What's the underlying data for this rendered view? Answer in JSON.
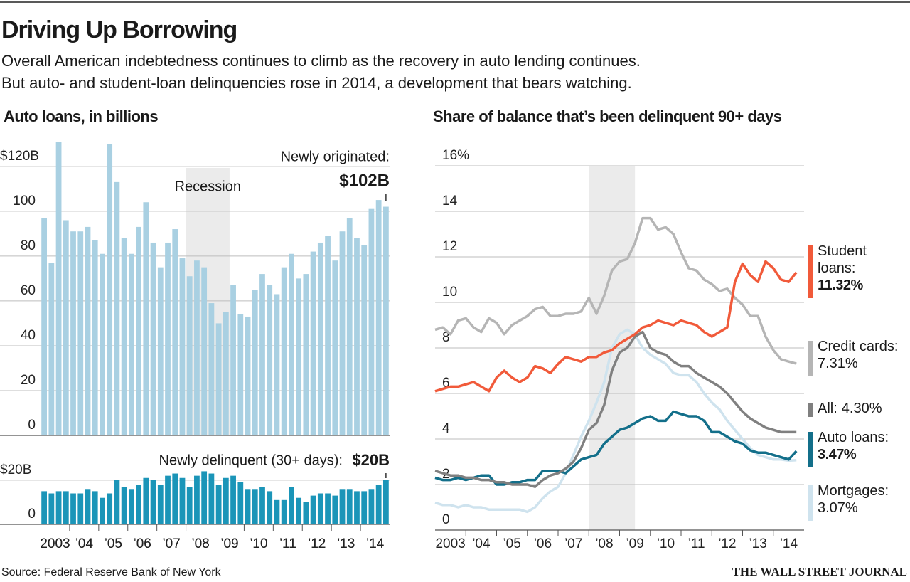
{
  "header": {
    "title": "Driving Up Borrowing",
    "subtitle": [
      "Overall American indebtedness continues to climb as the recovery in auto lending continues.",
      "But auto- and student-loan delinquencies rose in 2014, a development that bears watching."
    ]
  },
  "chart_data": [
    {
      "type": "bar",
      "title": "Auto loans, in billions",
      "annotation": "Newly originated:",
      "color": "#a9d0e2",
      "shade": {
        "label": "Recession",
        "from": 2008,
        "to": 2009.5
      },
      "xlim": [
        2003,
        2015
      ],
      "categories": [
        "2003",
        null,
        null,
        null,
        "’04",
        null,
        null,
        null,
        "’05",
        null,
        null,
        null,
        "’06",
        null,
        null,
        null,
        "’07",
        null,
        null,
        null,
        "’08",
        null,
        null,
        null,
        "’09",
        null,
        null,
        null,
        "’10",
        null,
        null,
        null,
        "’11",
        null,
        null,
        null,
        "’12",
        null,
        null,
        null,
        "’13",
        null,
        null,
        null,
        "’14",
        null,
        null,
        null
      ],
      "values": [
        97,
        77,
        131,
        96,
        91,
        91,
        93,
        87,
        81,
        130,
        113,
        88,
        81,
        93,
        104,
        86,
        75,
        86,
        92,
        79,
        71,
        78,
        75,
        59,
        50,
        55,
        67,
        54,
        53,
        65,
        72,
        67,
        63,
        75,
        81,
        70,
        72,
        82,
        86,
        89,
        78,
        91,
        97,
        88,
        85,
        101,
        105,
        102
      ],
      "value_labels": [
        null,
        null,
        null,
        null,
        null,
        null,
        null,
        null,
        null,
        null,
        null,
        null,
        null,
        null,
        null,
        null,
        null,
        null,
        null,
        null,
        null,
        null,
        null,
        null,
        null,
        null,
        null,
        null,
        null,
        null,
        null,
        null,
        null,
        null,
        null,
        null,
        null,
        null,
        null,
        null,
        null,
        null,
        null,
        null,
        null,
        null,
        null,
        "$102B"
      ],
      "ylim": [
        0,
        132
      ],
      "yticks": [
        0,
        20,
        40,
        60,
        80,
        100,
        {
          "value": 120,
          "label": "$120B"
        }
      ],
      "grid": true
    },
    {
      "type": "bar",
      "annotation": "Newly delinquent (30+ days):",
      "color": "#1b95b8",
      "xlim": [
        2003,
        2015
      ],
      "categories": [
        "2003",
        null,
        null,
        null,
        "’04",
        null,
        null,
        null,
        "’05",
        null,
        null,
        null,
        "’06",
        null,
        null,
        null,
        "’07",
        null,
        null,
        null,
        "’08",
        null,
        null,
        null,
        "’09",
        null,
        null,
        null,
        "’10",
        null,
        null,
        null,
        "’11",
        null,
        null,
        null,
        "’12",
        null,
        null,
        null,
        "’13",
        null,
        null,
        null,
        "’14",
        null,
        null,
        null
      ],
      "values": [
        15,
        14,
        15,
        15,
        14,
        14,
        16,
        15,
        12,
        14,
        20,
        17,
        16,
        18,
        21,
        20,
        18,
        22,
        23,
        21,
        17,
        22,
        24,
        23,
        18,
        21,
        22,
        19,
        16,
        16,
        17,
        15,
        11,
        11,
        17,
        12,
        10,
        13,
        14,
        14,
        13,
        16,
        16,
        15,
        15,
        16,
        18,
        20
      ],
      "value_labels": [
        null,
        null,
        null,
        null,
        null,
        null,
        null,
        null,
        null,
        null,
        null,
        null,
        null,
        null,
        null,
        null,
        null,
        null,
        null,
        null,
        null,
        null,
        null,
        null,
        null,
        null,
        null,
        null,
        null,
        null,
        null,
        null,
        null,
        null,
        null,
        null,
        null,
        null,
        null,
        null,
        null,
        null,
        null,
        null,
        null,
        null,
        null,
        "$20B"
      ],
      "ylim": [
        0,
        28
      ],
      "yticks": [
        0,
        {
          "value": 20,
          "label": "$20B"
        }
      ],
      "grid": true
    },
    {
      "type": "line",
      "title": "Share of balance that’s been delinquent 90+ days",
      "shade": {
        "from": 2008,
        "to": 2009.5
      },
      "x": [
        2003,
        2003.25,
        2003.5,
        2003.75,
        2004,
        2004.25,
        2004.5,
        2004.75,
        2005,
        2005.25,
        2005.5,
        2005.75,
        2006,
        2006.25,
        2006.5,
        2006.75,
        2007,
        2007.25,
        2007.5,
        2007.75,
        2008,
        2008.25,
        2008.5,
        2008.75,
        2009,
        2009.25,
        2009.5,
        2009.75,
        2010,
        2010.25,
        2010.5,
        2010.75,
        2011,
        2011.25,
        2011.5,
        2011.75,
        2012,
        2012.25,
        2012.5,
        2012.75,
        2013,
        2013.25,
        2013.5,
        2013.75,
        2014,
        2014.25,
        2014.5,
        2014.75
      ],
      "xlim": [
        2003,
        2015
      ],
      "xticks": [
        {
          "value": 2003.5,
          "label": "2003"
        },
        {
          "value": 2004.5,
          "label": "’04"
        },
        {
          "value": 2005.5,
          "label": "’05"
        },
        {
          "value": 2006.5,
          "label": "’06"
        },
        {
          "value": 2007.5,
          "label": "’07"
        },
        {
          "value": 2008.5,
          "label": "’08"
        },
        {
          "value": 2009.5,
          "label": "’09"
        },
        {
          "value": 2010.5,
          "label": "’10"
        },
        {
          "value": 2011.5,
          "label": "’11"
        },
        {
          "value": 2012.5,
          "label": "’12"
        },
        {
          "value": 2013.5,
          "label": "’13"
        },
        {
          "value": 2014.5,
          "label": "’14"
        }
      ],
      "ylim": [
        0,
        16
      ],
      "yticks": [
        0,
        2,
        4,
        6,
        8,
        10,
        12,
        14,
        {
          "value": 16,
          "label": "16%"
        }
      ],
      "grid": true,
      "series": [
        {
          "name": "Student loans:",
          "color": "#f15a3a",
          "values": [
            6.1,
            6.2,
            6.3,
            6.3,
            6.4,
            6.5,
            6.3,
            6.1,
            6.7,
            7.0,
            6.7,
            6.5,
            6.7,
            7.2,
            7.1,
            6.9,
            7.3,
            7.6,
            7.5,
            7.4,
            7.6,
            7.6,
            7.8,
            7.9,
            8.2,
            8.4,
            8.6,
            8.9,
            9.0,
            9.2,
            9.1,
            9.0,
            9.2,
            9.1,
            9.0,
            8.7,
            8.5,
            8.7,
            8.9,
            10.9,
            11.7,
            11.2,
            10.9,
            11.8,
            11.5,
            11.0,
            10.9,
            11.32
          ],
          "value_labels": [
            null,
            null,
            null,
            null,
            null,
            null,
            null,
            null,
            null,
            null,
            null,
            null,
            null,
            null,
            null,
            null,
            null,
            null,
            null,
            null,
            null,
            null,
            null,
            null,
            null,
            null,
            null,
            null,
            null,
            null,
            null,
            null,
            null,
            null,
            null,
            null,
            null,
            null,
            null,
            null,
            null,
            null,
            null,
            null,
            null,
            null,
            null,
            "11.32%"
          ]
        },
        {
          "name": "Credit cards:",
          "color": "#b5b5b5",
          "values": [
            8.8,
            8.9,
            8.6,
            9.2,
            9.3,
            8.9,
            8.7,
            9.3,
            9.1,
            8.6,
            9.0,
            9.2,
            9.4,
            9.7,
            9.8,
            9.4,
            9.4,
            9.5,
            9.5,
            9.6,
            10.2,
            9.5,
            10.3,
            11.4,
            11.8,
            11.9,
            12.6,
            13.7,
            13.7,
            13.2,
            13.3,
            13.0,
            12.2,
            11.5,
            11.4,
            11.0,
            10.8,
            10.5,
            10.6,
            10.2,
            9.9,
            9.4,
            9.4,
            8.5,
            7.9,
            7.5,
            7.4,
            7.31
          ],
          "value_labels": [
            null,
            null,
            null,
            null,
            null,
            null,
            null,
            null,
            null,
            null,
            null,
            null,
            null,
            null,
            null,
            null,
            null,
            null,
            null,
            null,
            null,
            null,
            null,
            null,
            null,
            null,
            null,
            null,
            null,
            null,
            null,
            null,
            null,
            null,
            null,
            null,
            null,
            null,
            null,
            null,
            null,
            null,
            null,
            null,
            null,
            null,
            null,
            "7.31%"
          ]
        },
        {
          "name": "All:",
          "color": "#808080",
          "values": [
            2.6,
            2.5,
            2.4,
            2.4,
            2.3,
            2.3,
            2.2,
            2.2,
            2.1,
            2.1,
            2.0,
            2.0,
            2.0,
            1.9,
            2.2,
            2.4,
            2.5,
            2.7,
            3.0,
            3.6,
            4.4,
            4.7,
            5.5,
            7.0,
            7.8,
            8.0,
            8.5,
            8.7,
            8.0,
            7.8,
            7.7,
            7.4,
            7.2,
            7.2,
            6.9,
            6.7,
            6.5,
            6.3,
            6.0,
            5.6,
            5.2,
            4.9,
            4.7,
            4.5,
            4.4,
            4.3,
            4.3,
            4.3
          ],
          "value_labels": [
            null,
            null,
            null,
            null,
            null,
            null,
            null,
            null,
            null,
            null,
            null,
            null,
            null,
            null,
            null,
            null,
            null,
            null,
            null,
            null,
            null,
            null,
            null,
            null,
            null,
            null,
            null,
            null,
            null,
            null,
            null,
            null,
            null,
            null,
            null,
            null,
            null,
            null,
            null,
            null,
            null,
            null,
            null,
            null,
            null,
            null,
            null,
            "4.30%"
          ]
        },
        {
          "name": "Auto loans:",
          "color": "#136f8a",
          "values": [
            2.3,
            2.2,
            2.2,
            2.3,
            2.2,
            2.3,
            2.4,
            2.4,
            2.0,
            2.0,
            2.1,
            2.1,
            2.2,
            2.2,
            2.6,
            2.6,
            2.6,
            2.5,
            2.8,
            3.1,
            3.2,
            3.3,
            3.8,
            4.1,
            4.4,
            4.5,
            4.7,
            4.9,
            5.0,
            4.8,
            4.8,
            5.2,
            5.1,
            5.0,
            5.0,
            4.8,
            4.3,
            4.3,
            4.1,
            3.9,
            3.8,
            3.5,
            3.4,
            3.4,
            3.3,
            3.2,
            3.1,
            3.47
          ],
          "value_labels": [
            null,
            null,
            null,
            null,
            null,
            null,
            null,
            null,
            null,
            null,
            null,
            null,
            null,
            null,
            null,
            null,
            null,
            null,
            null,
            null,
            null,
            null,
            null,
            null,
            null,
            null,
            null,
            null,
            null,
            null,
            null,
            null,
            null,
            null,
            null,
            null,
            null,
            null,
            null,
            null,
            null,
            null,
            null,
            null,
            null,
            null,
            null,
            "3.47%"
          ]
        },
        {
          "name": "Mortgages:",
          "color": "#cfe3ee",
          "values": [
            1.2,
            1.1,
            1.1,
            1.0,
            1.1,
            1.0,
            1.0,
            0.9,
            0.9,
            0.9,
            0.9,
            0.9,
            0.8,
            1.0,
            1.4,
            1.7,
            1.9,
            2.5,
            3.3,
            4.1,
            4.8,
            5.6,
            6.5,
            8.0,
            8.6,
            8.8,
            8.6,
            8.0,
            7.7,
            7.5,
            7.3,
            6.9,
            6.8,
            6.8,
            6.5,
            6.0,
            5.6,
            5.3,
            4.8,
            4.4,
            4.0,
            3.6,
            3.3,
            3.2,
            3.1,
            3.1,
            3.05,
            3.07
          ],
          "value_labels": [
            null,
            null,
            null,
            null,
            null,
            null,
            null,
            null,
            null,
            null,
            null,
            null,
            null,
            null,
            null,
            null,
            null,
            null,
            null,
            null,
            null,
            null,
            null,
            null,
            null,
            null,
            null,
            null,
            null,
            null,
            null,
            null,
            null,
            null,
            null,
            null,
            null,
            null,
            null,
            null,
            null,
            null,
            null,
            null,
            null,
            null,
            null,
            "3.07%"
          ]
        }
      ]
    }
  ],
  "source": "Source: Federal Reserve Bank of New York",
  "credit": "THE WALL STREET JOURNAL"
}
